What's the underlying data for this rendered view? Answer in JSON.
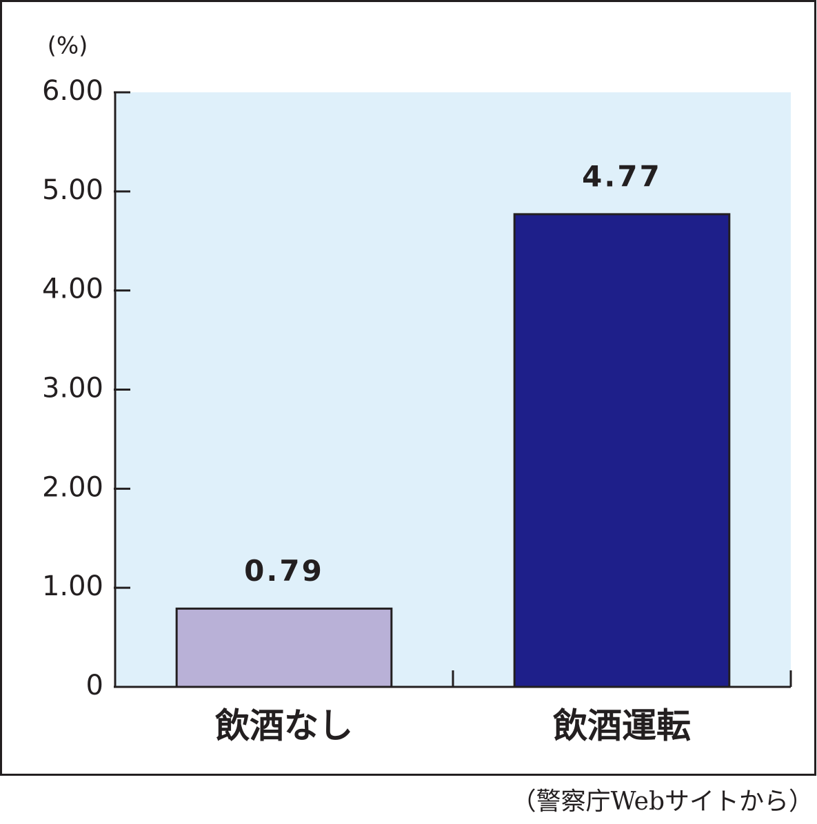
{
  "chart_data": {
    "type": "bar",
    "y_label": "(%)",
    "source": "（警察庁Webサイトから）",
    "categories": [
      "飲酒なし",
      "飲酒運転"
    ],
    "values": [
      0.79,
      4.77
    ],
    "colors": [
      "#b9b1d7",
      "#1e1f8a"
    ],
    "ylim": [
      0,
      6
    ],
    "yticks": [
      0,
      {
        "value": 1,
        "label": "1.00"
      },
      {
        "value": 2,
        "label": "2.00"
      },
      {
        "value": 3,
        "label": "3.00"
      },
      {
        "value": 4,
        "label": "4.00"
      },
      {
        "value": 5,
        "label": "5.00"
      },
      {
        "value": 6,
        "label": "6.00"
      }
    ],
    "background": "#dff0fa"
  }
}
